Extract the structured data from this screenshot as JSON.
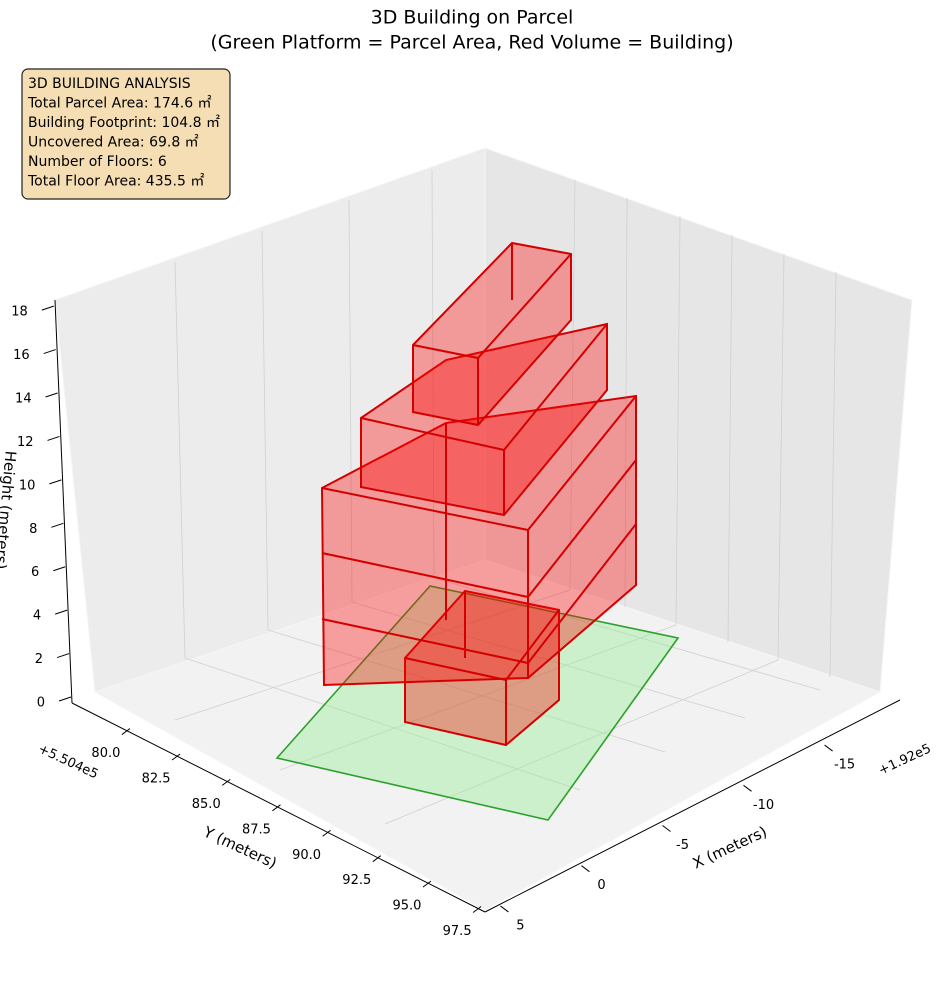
{
  "chart_data": {
    "type": "3d-building",
    "title": "3D Building on Parcel",
    "subtitle": "(Green Platform = Parcel Area, Red Volume = Building)",
    "annotation": [
      "3D BUILDING ANALYSIS",
      "Total Parcel Area: 174.6 ㎡",
      "Building Footprint: 104.8 ㎡",
      "Uncovered Area: 69.8 ㎡",
      "Number of Floors: 6",
      "Total Floor Area: 435.5 ㎡"
    ],
    "xlabel": "X (meters)",
    "ylabel": "Y (meters)",
    "zlabel": "Height (meters)",
    "x_offset": "+1.92e5",
    "y_offset": "+5.504e5",
    "xlim": [
      -17,
      7
    ],
    "xticks": [
      5,
      0,
      -5,
      -10,
      -15
    ],
    "ylim": [
      78.5,
      98.5
    ],
    "yticks": [
      {
        "value": 80,
        "label": "80.0"
      },
      {
        "value": 82.5,
        "label": "82.5"
      },
      {
        "value": 85,
        "label": "85.0"
      },
      {
        "value": 87.5,
        "label": "87.5"
      },
      {
        "value": 90,
        "label": "90.0"
      },
      {
        "value": 92.5,
        "label": "92.5"
      },
      {
        "value": 95,
        "label": "95.0"
      },
      {
        "value": 97.5,
        "label": "97.5"
      }
    ],
    "zlim": [
      0,
      18.5
    ],
    "zticks": [
      0,
      2,
      4,
      6,
      8,
      10,
      12,
      14,
      16,
      18
    ]
  }
}
